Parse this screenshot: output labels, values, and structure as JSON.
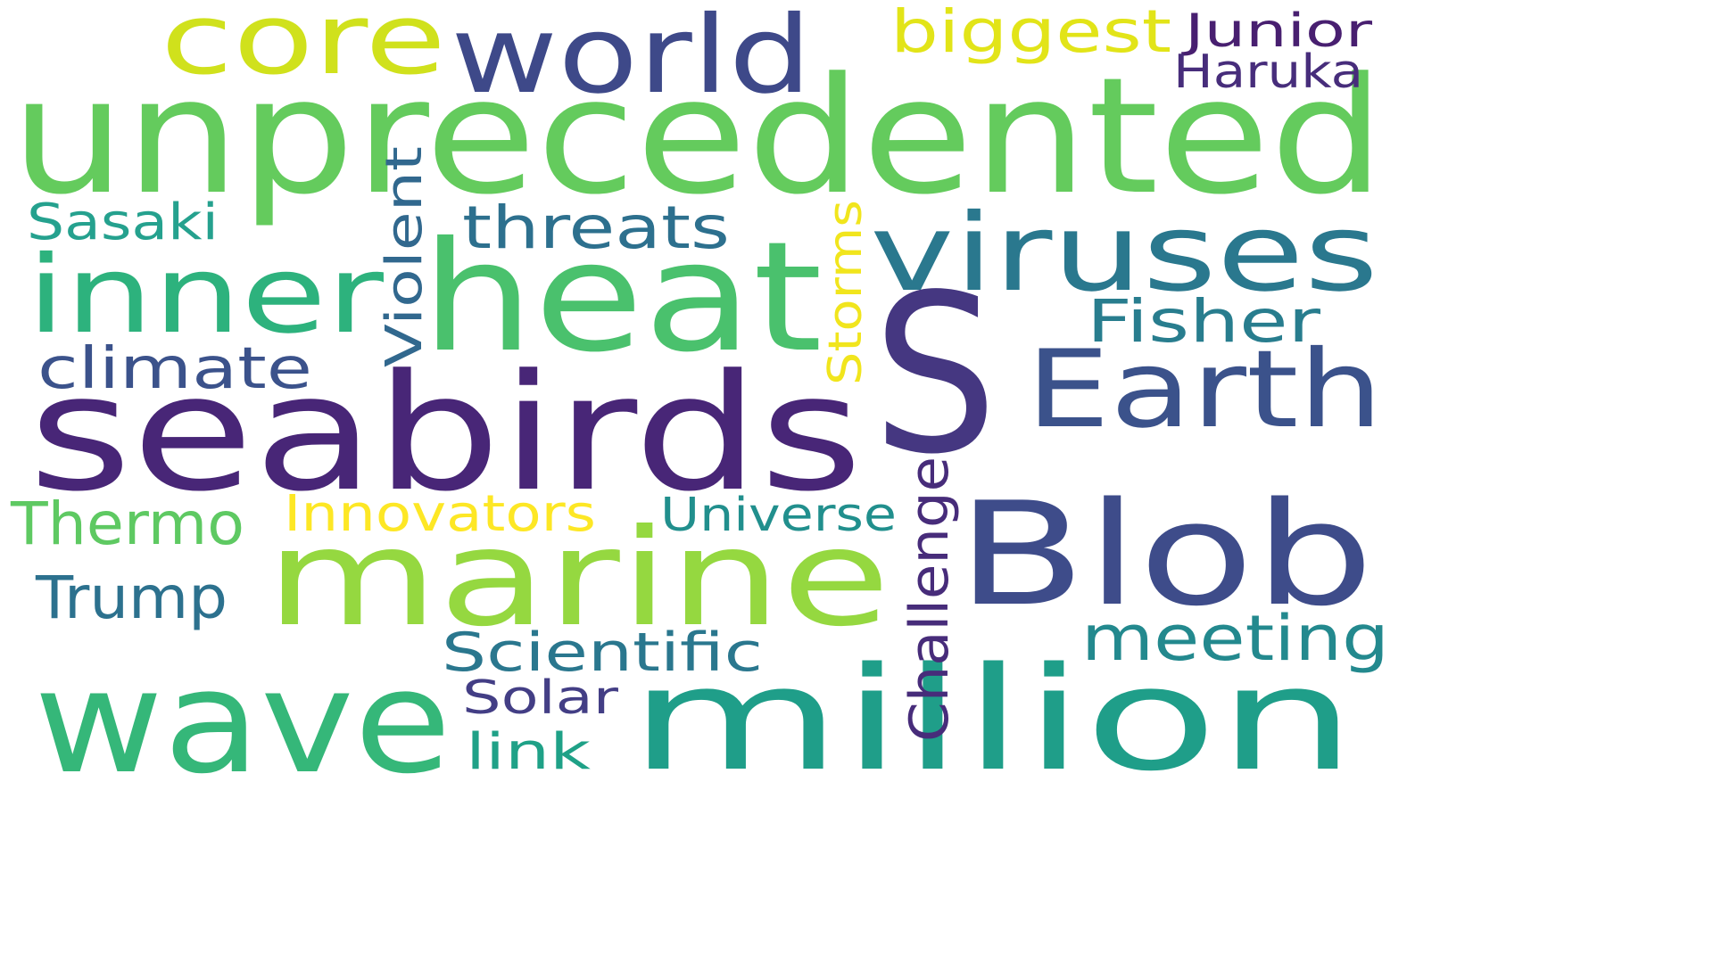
{
  "words": [
    {
      "text": "unprecedented",
      "color": "#64cb5d"
    },
    {
      "text": "seabirds",
      "color": "#482677"
    },
    {
      "text": "S",
      "color": "#453781"
    },
    {
      "text": "heat",
      "color": "#4ac16d"
    },
    {
      "text": "marine",
      "color": "#95d840"
    },
    {
      "text": "wave",
      "color": "#35b779"
    },
    {
      "text": "million",
      "color": "#1f9e89"
    },
    {
      "text": "Blob",
      "color": "#3e4c8a"
    },
    {
      "text": "viruses",
      "color": "#2a788e"
    },
    {
      "text": "Earth",
      "color": "#3b528b"
    },
    {
      "text": "inner",
      "color": "#2db27d"
    },
    {
      "text": "world",
      "color": "#3e4989"
    },
    {
      "text": "core",
      "color": "#d0e11c"
    },
    {
      "text": "biggest",
      "color": "#e2e418"
    },
    {
      "text": "Junior",
      "color": "#481f70"
    },
    {
      "text": "Haruka",
      "color": "#472d7b"
    },
    {
      "text": "threats",
      "color": "#2d708e"
    },
    {
      "text": "Sasaki",
      "color": "#25a18e"
    },
    {
      "text": "Fisher",
      "color": "#287d8e"
    },
    {
      "text": "climate",
      "color": "#3b528b"
    },
    {
      "text": "Violent",
      "color": "#31688e"
    },
    {
      "text": "Storms",
      "color": "#f1e51d"
    },
    {
      "text": "Thermo",
      "color": "#5ec962"
    },
    {
      "text": "Innovators",
      "color": "#fde725"
    },
    {
      "text": "Universe",
      "color": "#218f8d"
    },
    {
      "text": "Challenge",
      "color": "#472c7a"
    },
    {
      "text": "Trump",
      "color": "#2c718e"
    },
    {
      "text": "meeting",
      "color": "#23898e"
    },
    {
      "text": "Scientific",
      "color": "#2a778e"
    },
    {
      "text": "Solar",
      "color": "#433e85"
    },
    {
      "text": "link",
      "color": "#1fa187"
    }
  ]
}
